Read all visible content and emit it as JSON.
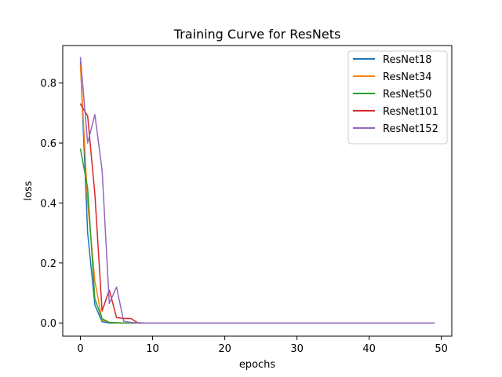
{
  "chart_data": {
    "type": "line",
    "title": "Training Curve for ResNets",
    "xlabel": "epochs",
    "ylabel": "loss",
    "xlim": [
      -2.45,
      51.45
    ],
    "ylim": [
      -0.044,
      0.925
    ],
    "xticks": [
      0,
      10,
      20,
      30,
      40,
      50
    ],
    "yticks": [
      0.0,
      0.2,
      0.4,
      0.6,
      0.8
    ],
    "xtick_labels": [
      "0",
      "10",
      "20",
      "30",
      "40",
      "50"
    ],
    "ytick_labels": [
      "0.0",
      "0.2",
      "0.4",
      "0.6",
      "0.8"
    ],
    "grid": false,
    "legend_position": "top-right",
    "n_epochs": 50,
    "series": [
      {
        "name": "ResNet18",
        "color": "#1f77b4",
        "head": [
          0.87,
          0.3,
          0.06,
          0.004,
          0.0,
          0.0
        ]
      },
      {
        "name": "ResNet34",
        "color": "#ff7f0e",
        "head": [
          0.86,
          0.4,
          0.14,
          0.01,
          0.002,
          0.0
        ]
      },
      {
        "name": "ResNet50",
        "color": "#2ca02c",
        "head": [
          0.58,
          0.45,
          0.08,
          0.014,
          0.002,
          0.001,
          0.0
        ]
      },
      {
        "name": "ResNet101",
        "color": "#d62728",
        "head": [
          0.73,
          0.69,
          0.43,
          0.04,
          0.11,
          0.018,
          0.015,
          0.015,
          0.0
        ]
      },
      {
        "name": "ResNet152",
        "color": "#9467bd",
        "head": [
          0.885,
          0.6,
          0.695,
          0.51,
          0.065,
          0.12,
          0.005,
          0.002,
          0.001,
          0.0
        ]
      }
    ]
  }
}
